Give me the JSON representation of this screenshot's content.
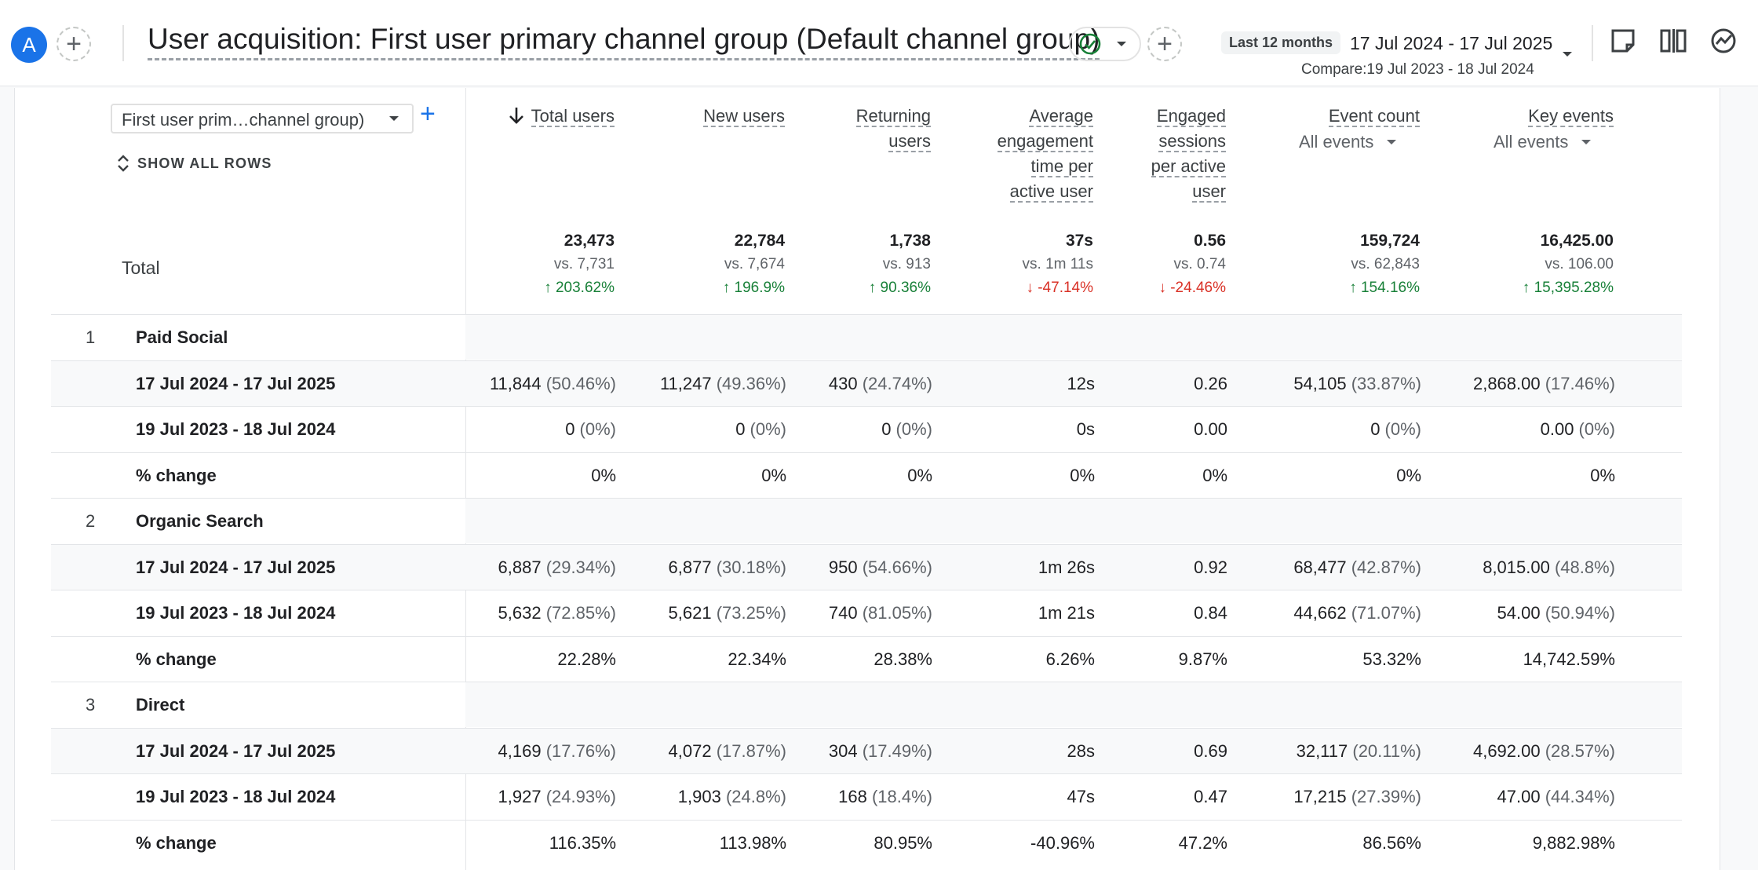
{
  "header": {
    "avatar_letter": "A",
    "title": "User acquisition: First user primary channel group (Default channel group)",
    "date_chip": "Last 12 months",
    "date_range": "17 Jul 2024 - 17 Jul 2025",
    "compare_range": "Compare:19 Jul 2023 - 18 Jul 2024"
  },
  "table": {
    "dimension_select": "First user prim…channel group)",
    "show_all_rows": "SHOW ALL ROWS",
    "columns": [
      {
        "lines": [
          "Total users"
        ],
        "sort": true
      },
      {
        "lines": [
          "New users"
        ]
      },
      {
        "lines": [
          "Returning",
          "users"
        ]
      },
      {
        "lines": [
          "Average",
          "engagement",
          "time per",
          "active user"
        ]
      },
      {
        "lines": [
          "Engaged",
          "sessions",
          "per active",
          "user"
        ]
      },
      {
        "lines": [
          "Event count"
        ],
        "filter": "All events"
      },
      {
        "lines": [
          "Key events"
        ],
        "filter": "All events"
      }
    ],
    "total_label": "Total",
    "totals": [
      {
        "value": "23,473",
        "vs": "vs. 7,731",
        "change": "203.62%",
        "dir": "up"
      },
      {
        "value": "22,784",
        "vs": "vs. 7,674",
        "change": "196.9%",
        "dir": "up"
      },
      {
        "value": "1,738",
        "vs": "vs. 913",
        "change": "90.36%",
        "dir": "up"
      },
      {
        "value": "37s",
        "vs": "vs. 1m 11s",
        "change": "-47.14%",
        "dir": "down"
      },
      {
        "value": "0.56",
        "vs": "vs. 0.74",
        "change": "-24.46%",
        "dir": "down"
      },
      {
        "value": "159,724",
        "vs": "vs. 62,843",
        "change": "154.16%",
        "dir": "up"
      },
      {
        "value": "16,425.00",
        "vs": "vs. 106.00",
        "change": "15,395.28%",
        "dir": "up"
      }
    ],
    "groups": [
      {
        "index": "1",
        "name": "Paid Social",
        "rows": [
          {
            "label": "17 Jul 2024 - 17 Jul 2025",
            "cells": [
              [
                "11,844",
                "(50.46%)"
              ],
              [
                "11,247",
                "(49.36%)"
              ],
              [
                "430",
                "(24.74%)"
              ],
              [
                "12s",
                ""
              ],
              [
                "0.26",
                ""
              ],
              [
                "54,105",
                "(33.87%)"
              ],
              [
                "2,868.00",
                "(17.46%)"
              ]
            ]
          },
          {
            "label": "19 Jul 2023 - 18 Jul 2024",
            "cells": [
              [
                "0",
                "(0%)"
              ],
              [
                "0",
                "(0%)"
              ],
              [
                "0",
                "(0%)"
              ],
              [
                "0s",
                ""
              ],
              [
                "0.00",
                ""
              ],
              [
                "0",
                "(0%)"
              ],
              [
                "0.00",
                "(0%)"
              ]
            ]
          },
          {
            "label": "% change",
            "cells": [
              [
                "0%",
                ""
              ],
              [
                "0%",
                ""
              ],
              [
                "0%",
                ""
              ],
              [
                "0%",
                ""
              ],
              [
                "0%",
                ""
              ],
              [
                "0%",
                ""
              ],
              [
                "0%",
                ""
              ]
            ]
          }
        ]
      },
      {
        "index": "2",
        "name": "Organic Search",
        "rows": [
          {
            "label": "17 Jul 2024 - 17 Jul 2025",
            "cells": [
              [
                "6,887",
                "(29.34%)"
              ],
              [
                "6,877",
                "(30.18%)"
              ],
              [
                "950",
                "(54.66%)"
              ],
              [
                "1m 26s",
                ""
              ],
              [
                "0.92",
                ""
              ],
              [
                "68,477",
                "(42.87%)"
              ],
              [
                "8,015.00",
                "(48.8%)"
              ]
            ]
          },
          {
            "label": "19 Jul 2023 - 18 Jul 2024",
            "cells": [
              [
                "5,632",
                "(72.85%)"
              ],
              [
                "5,621",
                "(73.25%)"
              ],
              [
                "740",
                "(81.05%)"
              ],
              [
                "1m 21s",
                ""
              ],
              [
                "0.84",
                ""
              ],
              [
                "44,662",
                "(71.07%)"
              ],
              [
                "54.00",
                "(50.94%)"
              ]
            ]
          },
          {
            "label": "% change",
            "cells": [
              [
                "22.28%",
                ""
              ],
              [
                "22.34%",
                ""
              ],
              [
                "28.38%",
                ""
              ],
              [
                "6.26%",
                ""
              ],
              [
                "9.87%",
                ""
              ],
              [
                "53.32%",
                ""
              ],
              [
                "14,742.59%",
                ""
              ]
            ]
          }
        ]
      },
      {
        "index": "3",
        "name": "Direct",
        "rows": [
          {
            "label": "17 Jul 2024 - 17 Jul 2025",
            "cells": [
              [
                "4,169",
                "(17.76%)"
              ],
              [
                "4,072",
                "(17.87%)"
              ],
              [
                "304",
                "(17.49%)"
              ],
              [
                "28s",
                ""
              ],
              [
                "0.69",
                ""
              ],
              [
                "32,117",
                "(20.11%)"
              ],
              [
                "4,692.00",
                "(28.57%)"
              ]
            ]
          },
          {
            "label": "19 Jul 2023 - 18 Jul 2024",
            "cells": [
              [
                "1,927",
                "(24.93%)"
              ],
              [
                "1,903",
                "(24.8%)"
              ],
              [
                "168",
                "(18.4%)"
              ],
              [
                "47s",
                ""
              ],
              [
                "0.47",
                ""
              ],
              [
                "17,215",
                "(27.39%)"
              ],
              [
                "47.00",
                "(44.34%)"
              ]
            ]
          },
          {
            "label": "% change",
            "cells": [
              [
                "116.35%",
                ""
              ],
              [
                "113.98%",
                ""
              ],
              [
                "80.95%",
                ""
              ],
              [
                "-40.96%",
                ""
              ],
              [
                "47.2%",
                ""
              ],
              [
                "86.56%",
                ""
              ],
              [
                "9,882.98%",
                ""
              ]
            ]
          }
        ]
      }
    ]
  },
  "colors": {
    "accent": "#1a73e8",
    "up": "#188038",
    "down": "#d93025"
  }
}
